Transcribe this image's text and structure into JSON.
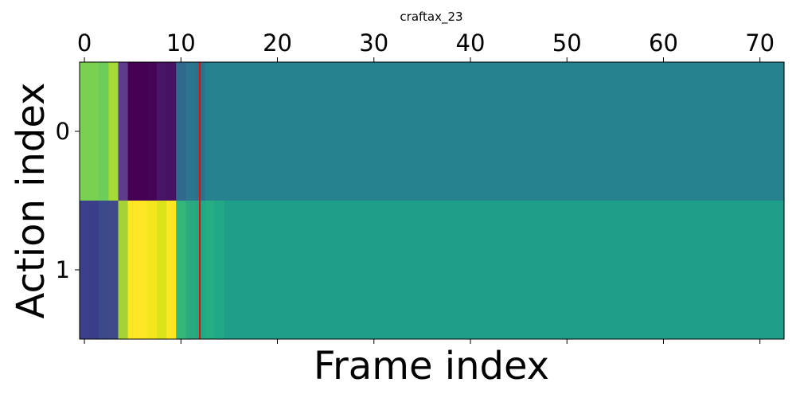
{
  "chart_data": {
    "type": "heatmap",
    "title": "craftax_23",
    "xlabel": "Frame index",
    "ylabel": "Action index",
    "x_ticks": [
      0,
      10,
      20,
      30,
      40,
      50,
      60,
      70
    ],
    "y_ticks": [
      0,
      1
    ],
    "xlim": [
      -0.5,
      72.5
    ],
    "ylim": [
      -0.5,
      1.5
    ],
    "x_axis_position": "top",
    "marker_line": {
      "x": 12,
      "color": "#ff0000"
    },
    "rows": [
      {
        "label": "0",
        "cells": [
          "#7ad151",
          "#7ad151",
          "#6ccd5a",
          "#a5db36",
          "#5c3c8b",
          "#440154",
          "#440154",
          "#450457",
          "#481467",
          "#471164",
          "#31688e",
          "#2b758e",
          "#2c728e",
          "#26828e",
          "#26828e",
          "#26828e",
          "#26828e",
          "#26828e",
          "#26828e",
          "#26828e",
          "#26828e",
          "#26828e",
          "#26828e",
          "#26828e",
          "#26828e",
          "#26828e",
          "#26828e",
          "#26828e",
          "#26828e",
          "#26828e",
          "#26828e",
          "#26828e",
          "#26828e",
          "#26828e",
          "#26828e",
          "#26828e",
          "#26828e",
          "#26828e",
          "#26828e",
          "#26828e",
          "#26828e",
          "#26828e",
          "#26828e",
          "#26828e",
          "#26828e",
          "#26828e",
          "#26828e",
          "#26828e",
          "#26828e",
          "#26828e",
          "#26828e",
          "#26828e",
          "#26828e",
          "#26828e",
          "#26828e",
          "#26828e",
          "#26828e",
          "#26828e",
          "#26828e",
          "#26828e",
          "#26828e",
          "#26828e",
          "#26828e",
          "#26828e",
          "#26828e",
          "#26828e",
          "#26828e",
          "#26828e",
          "#26828e",
          "#26828e",
          "#26828e",
          "#26828e",
          "#26828e"
        ]
      },
      {
        "label": "1",
        "cells": [
          "#3b3f8a",
          "#3b3f8a",
          "#3a4a8b",
          "#3e4a89",
          "#a5d236",
          "#fde725",
          "#fde725",
          "#f3e61e",
          "#dce319",
          "#fde725",
          "#35b779",
          "#2ba97f",
          "#22a884",
          "#26ad81",
          "#22a884",
          "#1f9e89",
          "#1f9e89",
          "#1f9e89",
          "#1f9e89",
          "#1f9e89",
          "#1f9e89",
          "#1f9e89",
          "#1f9e89",
          "#1f9e89",
          "#1f9e89",
          "#1f9e89",
          "#1f9e89",
          "#1f9e89",
          "#1f9e89",
          "#1f9e89",
          "#1f9e89",
          "#1f9e89",
          "#1f9e89",
          "#1f9e89",
          "#1f9e89",
          "#1f9e89",
          "#1f9e89",
          "#1f9e89",
          "#1f9e89",
          "#1f9e89",
          "#1f9e89",
          "#1f9e89",
          "#1f9e89",
          "#1f9e89",
          "#1f9e89",
          "#1f9e89",
          "#1f9e89",
          "#1f9e89",
          "#1f9e89",
          "#1f9e89",
          "#1f9e89",
          "#1f9e89",
          "#1f9e89",
          "#1f9e89",
          "#1f9e89",
          "#1f9e89",
          "#1f9e89",
          "#1f9e89",
          "#1f9e89",
          "#1f9e89",
          "#1f9e89",
          "#1f9e89",
          "#1f9e89",
          "#1f9e89",
          "#1f9e89",
          "#1f9e89",
          "#1f9e89",
          "#1f9e89",
          "#1f9e89",
          "#1f9e89",
          "#1f9e89",
          "#1f9e89",
          "#1f9e89"
        ]
      }
    ],
    "colormap": "viridis",
    "grid": false
  }
}
